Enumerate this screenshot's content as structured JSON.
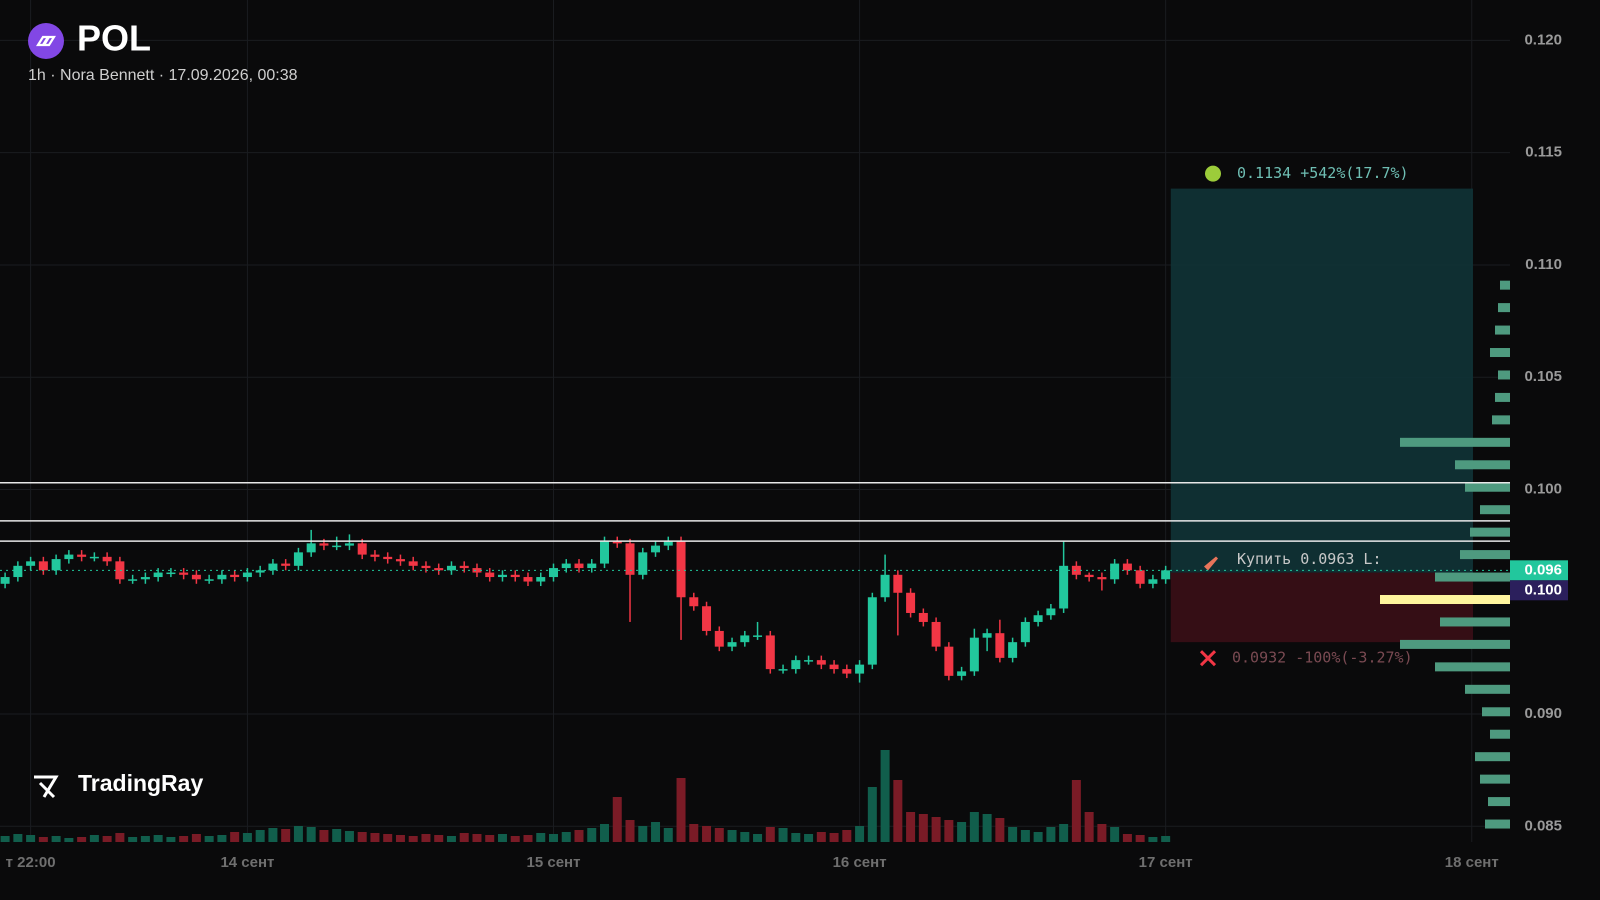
{
  "chart_data": {
    "type": "candlestick",
    "title": "POL",
    "subtitle": "1h · Nora Bennett · 17.09.2026, 00:38",
    "watermark": "TradingRay",
    "up_color": "#22c79d",
    "down_color": "#f23645",
    "ylim": [
      0.0843,
      0.1218
    ],
    "yticks": [
      0.085,
      {
        "value": 0.09,
        "label": "0.090"
      },
      {
        "value": 0.1,
        "label": "0.100"
      },
      0.105,
      {
        "value": 0.11,
        "label": "0.110"
      },
      0.115,
      {
        "value": 0.12,
        "label": "0.120"
      }
    ],
    "xlim": [
      -0.4,
      118
    ],
    "xticks": [
      {
        "value": 2,
        "label": "т 22:00"
      },
      {
        "value": 19,
        "label": "14 сент"
      },
      {
        "value": 43,
        "label": "15 сент"
      },
      {
        "value": 67,
        "label": "16 сент"
      },
      {
        "value": 91,
        "label": "17 сент"
      },
      {
        "value": 115,
        "label": "18 сент"
      }
    ],
    "grid": true,
    "open": [
      0.0958,
      0.0961,
      0.0966,
      0.0968,
      0.0964,
      0.0969,
      0.0971,
      0.097,
      0.097,
      0.0968,
      0.096,
      0.096,
      0.0961,
      0.0963,
      0.0963,
      0.0962,
      0.096,
      0.096,
      0.0962,
      0.0961,
      0.0963,
      0.0964,
      0.0967,
      0.0966,
      0.0972,
      0.0976,
      0.0975,
      0.0975,
      0.0976,
      0.0971,
      0.097,
      0.0969,
      0.0968,
      0.0966,
      0.0965,
      0.0964,
      0.0966,
      0.0965,
      0.0963,
      0.0961,
      0.0962,
      0.0961,
      0.0959,
      0.0961,
      0.0965,
      0.0967,
      0.0965,
      0.0967,
      0.0977,
      0.0976,
      0.0962,
      0.0972,
      0.0975,
      0.0977,
      0.0952,
      0.0948,
      0.0937,
      0.093,
      0.0932,
      0.0935,
      0.0935,
      0.092,
      0.092,
      0.0924,
      0.0924,
      0.0922,
      0.092,
      0.0918,
      0.0922,
      0.0952,
      0.0962,
      0.0954,
      0.0945,
      0.0941,
      0.093,
      0.0917,
      0.0919,
      0.0934,
      0.0936,
      0.0925,
      0.0932,
      0.0941,
      0.0944,
      0.0947,
      0.0966,
      0.0962,
      0.0961,
      0.096,
      0.0967,
      0.0964,
      0.0958,
      0.096
    ],
    "high": [
      0.0963,
      0.0968,
      0.097,
      0.097,
      0.0971,
      0.0973,
      0.0973,
      0.0972,
      0.0972,
      0.097,
      0.0962,
      0.0963,
      0.0965,
      0.0965,
      0.0965,
      0.0964,
      0.0962,
      0.0964,
      0.0964,
      0.0965,
      0.0966,
      0.0969,
      0.0969,
      0.0974,
      0.0982,
      0.0978,
      0.0979,
      0.098,
      0.0978,
      0.0973,
      0.0972,
      0.0971,
      0.097,
      0.0968,
      0.0967,
      0.0968,
      0.0968,
      0.0967,
      0.0965,
      0.0964,
      0.0964,
      0.0963,
      0.0963,
      0.0967,
      0.0969,
      0.0969,
      0.0969,
      0.0979,
      0.0979,
      0.0978,
      0.0974,
      0.0977,
      0.0979,
      0.0979,
      0.0954,
      0.095,
      0.0939,
      0.0934,
      0.0937,
      0.0941,
      0.0937,
      0.0922,
      0.0926,
      0.0926,
      0.0926,
      0.0924,
      0.0922,
      0.0924,
      0.0954,
      0.0971,
      0.0964,
      0.0956,
      0.0947,
      0.0943,
      0.0932,
      0.0921,
      0.0938,
      0.0938,
      0.0942,
      0.0934,
      0.0943,
      0.0946,
      0.0949,
      0.0977,
      0.0968,
      0.0963,
      0.0963,
      0.0969,
      0.0969,
      0.0966,
      0.0962,
      0.0966
    ],
    "low": [
      0.0956,
      0.0959,
      0.0964,
      0.0962,
      0.0962,
      0.0967,
      0.0968,
      0.0968,
      0.0966,
      0.0958,
      0.0958,
      0.0958,
      0.0959,
      0.0961,
      0.096,
      0.0958,
      0.0958,
      0.0958,
      0.0959,
      0.0959,
      0.0961,
      0.0962,
      0.0964,
      0.0964,
      0.097,
      0.0973,
      0.0973,
      0.0973,
      0.0969,
      0.0968,
      0.0967,
      0.0966,
      0.0964,
      0.0963,
      0.0962,
      0.0962,
      0.0963,
      0.0961,
      0.0959,
      0.0959,
      0.0959,
      0.0957,
      0.0957,
      0.0959,
      0.0963,
      0.0963,
      0.0963,
      0.0965,
      0.0974,
      0.0941,
      0.096,
      0.097,
      0.0973,
      0.0933,
      0.0946,
      0.0935,
      0.0928,
      0.0928,
      0.093,
      0.0933,
      0.0918,
      0.0918,
      0.0918,
      0.0922,
      0.092,
      0.0918,
      0.0916,
      0.0914,
      0.092,
      0.095,
      0.0935,
      0.0943,
      0.0939,
      0.0928,
      0.0915,
      0.0915,
      0.0917,
      0.0928,
      0.0923,
      0.0923,
      0.093,
      0.0939,
      0.0942,
      0.0945,
      0.096,
      0.0959,
      0.0955,
      0.0958,
      0.0962,
      0.0956,
      0.0956,
      0.0958
    ],
    "close": [
      0.0961,
      0.0966,
      0.0968,
      0.0964,
      0.0969,
      0.0971,
      0.097,
      0.097,
      0.0968,
      0.096,
      0.096,
      0.0961,
      0.0963,
      0.0963,
      0.0962,
      0.096,
      0.096,
      0.0962,
      0.0961,
      0.0963,
      0.0964,
      0.0967,
      0.0966,
      0.0972,
      0.0976,
      0.0975,
      0.0975,
      0.0976,
      0.0971,
      0.097,
      0.0969,
      0.0968,
      0.0966,
      0.0965,
      0.0964,
      0.0966,
      0.0965,
      0.0963,
      0.0961,
      0.0962,
      0.0961,
      0.0959,
      0.0961,
      0.0965,
      0.0967,
      0.0965,
      0.0967,
      0.0977,
      0.0976,
      0.0962,
      0.0972,
      0.0975,
      0.0977,
      0.0952,
      0.0948,
      0.0937,
      0.093,
      0.0932,
      0.0935,
      0.0935,
      0.092,
      0.092,
      0.0924,
      0.0924,
      0.0922,
      0.092,
      0.0918,
      0.0922,
      0.0952,
      0.0962,
      0.0954,
      0.0945,
      0.0941,
      0.093,
      0.0917,
      0.0919,
      0.0934,
      0.0936,
      0.0925,
      0.0932,
      0.0941,
      0.0944,
      0.0947,
      0.0966,
      0.0962,
      0.0961,
      0.096,
      0.0967,
      0.0964,
      0.0958,
      0.096,
      0.0964
    ],
    "volume": [
      6,
      8,
      7,
      5,
      6,
      4,
      5,
      7,
      6,
      9,
      5,
      6,
      7,
      5,
      6,
      8,
      6,
      7,
      10,
      9,
      12,
      14,
      13,
      16,
      15,
      12,
      13,
      11,
      10,
      9,
      8,
      7,
      6,
      8,
      7,
      6,
      9,
      8,
      7,
      8,
      6,
      7,
      9,
      8,
      10,
      12,
      14,
      18,
      45,
      22,
      16,
      20,
      14,
      64,
      18,
      16,
      14,
      12,
      10,
      8,
      15,
      14,
      9,
      8,
      10,
      9,
      12,
      16,
      55,
      92,
      62,
      30,
      28,
      25,
      22,
      20,
      30,
      28,
      24,
      15,
      12,
      10,
      15,
      18,
      62,
      30,
      18,
      15,
      8,
      7,
      5,
      6
    ],
    "hlines": [
      0.1003,
      0.0986,
      0.0977
    ],
    "last_price": {
      "value": 0.0964,
      "label": "0.096"
    },
    "alert_badge": "0.100",
    "position": {
      "start": 91.4,
      "end": 115.1,
      "target": 0.1134,
      "entry": 0.0963,
      "stop": 0.0932,
      "target_label": "0.1134 +542%(17.7%)",
      "entry_label": "Купить 0.0963 L:",
      "stop_label": "0.0932 -100%(-3.27%)"
    },
    "volume_profile": {
      "color": "#4e9a7f",
      "poc_color": "#fff59d",
      "poc": 0.0951,
      "prices": [
        0.0851,
        0.0861,
        0.0871,
        0.0881,
        0.0891,
        0.0901,
        0.0911,
        0.0921,
        0.0931,
        0.0941,
        0.0951,
        0.0961,
        0.0971,
        0.0981,
        0.0991,
        0.1001,
        0.1011,
        0.1021,
        0.1031,
        0.1041,
        0.1051,
        0.1061,
        0.1071,
        0.1081,
        0.1091
      ],
      "volumes": [
        25,
        22,
        30,
        35,
        20,
        28,
        45,
        75,
        110,
        70,
        130,
        75,
        50,
        40,
        30,
        45,
        55,
        110,
        18,
        15,
        12,
        20,
        15,
        12,
        10
      ]
    }
  }
}
